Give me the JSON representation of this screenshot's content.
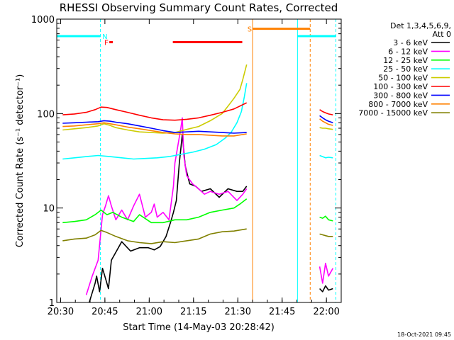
{
  "chart_data": {
    "type": "line",
    "title": "RHESSI Observing Summary Count Rates, Corrected",
    "xlabel": "Start Time (14-May-03 20:28:42)",
    "ylabel": "Corrected Count Rate (s⁻¹ detector⁻¹)",
    "x_unit": "minutes after 20:28:42 (UT, 14-May-03)",
    "xlim": [
      0,
      96.3
    ],
    "ylim": [
      1,
      1000
    ],
    "yscale": "log",
    "xticks": [
      {
        "x": 1.3,
        "label": "20:30"
      },
      {
        "x": 16.3,
        "label": "20:45"
      },
      {
        "x": 31.3,
        "label": "21:00"
      },
      {
        "x": 46.3,
        "label": "21:15"
      },
      {
        "x": 61.3,
        "label": "21:30"
      },
      {
        "x": 76.3,
        "label": "21:45"
      },
      {
        "x": 91.3,
        "label": "22:00"
      }
    ],
    "yticks": [
      {
        "y": 1,
        "label": "1"
      },
      {
        "y": 10,
        "label": "10"
      },
      {
        "y": 100,
        "label": "100"
      },
      {
        "y": 1000,
        "label": "1000"
      }
    ],
    "grid": false,
    "legend_header": [
      "Det 1,3,4,5,6,9,",
      "Att 0"
    ],
    "legend_position": "top-right outside",
    "footer_stamp": "18-Oct-2021 09:45",
    "series": [
      {
        "name": "3 - 6 keV",
        "color": "#000000",
        "x": [
          11,
          13,
          13.5,
          14.5,
          15.5,
          16.5,
          17.5,
          18.5,
          20,
          22,
          25,
          28,
          31,
          33,
          35,
          37,
          38.5,
          39.5,
          40.5,
          41.5,
          42.5,
          43.5,
          45,
          47,
          49,
          52,
          55,
          58,
          61,
          63,
          64.3
        ],
        "y": [
          1,
          1.6,
          1.9,
          1.3,
          2.3,
          1.8,
          1.4,
          2.8,
          3.4,
          4.4,
          3.5,
          3.8,
          3.8,
          3.6,
          3.9,
          5,
          7,
          9,
          12,
          30,
          60,
          28,
          18,
          17,
          15,
          16,
          13,
          16,
          15,
          15,
          17
        ]
      },
      {
        "name": "6 - 12 keV",
        "color": "#ff00ff",
        "x": [
          10,
          12,
          14,
          15.5,
          16.5,
          17.5,
          18.5,
          20,
          22,
          24,
          26,
          28,
          30,
          32,
          33,
          34,
          36,
          38,
          39.5,
          40,
          42,
          42.5,
          43,
          44,
          46,
          48,
          50,
          52,
          55,
          58,
          61,
          63,
          64.3
        ],
        "y": [
          1.2,
          1.9,
          2.8,
          8.5,
          10.5,
          13.5,
          10.5,
          7.5,
          9.5,
          7.5,
          10.5,
          14,
          8,
          9,
          11,
          8,
          9,
          7.5,
          17,
          30,
          70,
          90,
          36,
          22,
          18,
          16,
          14,
          15,
          14,
          15,
          12,
          14,
          16
        ]
      },
      {
        "name": "12 - 25 keV",
        "color": "#00ff00",
        "x": [
          2,
          6,
          10,
          13,
          15,
          17,
          19,
          22,
          26,
          28,
          32,
          36,
          40,
          44,
          48,
          52,
          56,
          60,
          62,
          64.3
        ],
        "y": [
          7,
          7.2,
          7.5,
          8.5,
          9.5,
          8.5,
          9,
          8,
          7.2,
          8.5,
          7,
          7,
          7.5,
          7.5,
          8,
          9,
          9.5,
          10,
          11,
          12.5
        ]
      },
      {
        "name": "25 - 50 keV",
        "color": "#00ffff",
        "x": [
          2,
          6,
          10,
          14,
          18,
          22,
          26,
          30,
          34,
          38,
          42,
          46,
          50,
          54,
          57,
          59,
          61,
          62.5,
          63.5,
          64.3
        ],
        "y": [
          33,
          34,
          35,
          36,
          35,
          34,
          33,
          33.5,
          34,
          35,
          37,
          39,
          42,
          47,
          55,
          63,
          80,
          105,
          150,
          210
        ]
      },
      {
        "name": "50 - 100 keV",
        "color": "#cccc00",
        "x": [
          2,
          6,
          10,
          14,
          16,
          18,
          20,
          24,
          28,
          32,
          36,
          40,
          44,
          48,
          52,
          56,
          58,
          60,
          62,
          63,
          64.3
        ],
        "y": [
          67,
          69,
          71,
          74,
          78,
          75,
          71,
          67,
          64,
          63,
          62,
          63,
          68,
          73,
          84,
          100,
          120,
          145,
          180,
          230,
          330
        ]
      },
      {
        "name": "100 - 300 keV",
        "color": "#ff0000",
        "x": [
          2,
          6,
          10,
          13,
          15,
          17,
          20,
          24,
          28,
          32,
          36,
          40,
          44,
          48,
          52,
          56,
          60,
          64.3
        ],
        "y": [
          97,
          99,
          103,
          110,
          117,
          116,
          110,
          103,
          96,
          90,
          86,
          85,
          87,
          90,
          96,
          103,
          112,
          130
        ]
      },
      {
        "name": "300 - 800 keV",
        "color": "#0000ff",
        "x": [
          2,
          6,
          10,
          14,
          16,
          18,
          20,
          24,
          28,
          32,
          36,
          40,
          44,
          48,
          52,
          56,
          60,
          64.3
        ],
        "y": [
          79,
          80,
          81,
          82,
          84,
          83,
          81,
          78,
          74,
          70,
          66,
          63,
          64,
          65,
          64,
          63,
          62,
          63
        ]
      },
      {
        "name": "800 - 7000 keV",
        "color": "#ff8000",
        "x": [
          2,
          6,
          10,
          14,
          16,
          18,
          20,
          24,
          28,
          32,
          36,
          40,
          44,
          48,
          52,
          56,
          60,
          64.3
        ],
        "y": [
          73,
          74,
          76,
          78,
          80,
          78,
          76,
          72,
          69,
          66,
          63,
          61,
          60,
          60,
          59,
          58,
          58,
          61
        ]
      },
      {
        "name": "7000 - 15000 keV",
        "color": "#808000",
        "x": [
          2,
          6,
          10,
          13,
          15,
          17,
          20,
          24,
          28,
          32,
          36,
          40,
          44,
          48,
          52,
          56,
          60,
          64.3
        ],
        "y": [
          4.5,
          4.7,
          4.8,
          5.2,
          5.8,
          5.5,
          5,
          4.5,
          4.3,
          4.2,
          4.4,
          4.3,
          4.5,
          4.7,
          5.3,
          5.6,
          5.7,
          6
        ]
      },
      {
        "name": "3 - 6 keV",
        "color": "#000000",
        "x": [
          89,
          90,
          91,
          92,
          93.5
        ],
        "y": [
          1.4,
          1.3,
          1.5,
          1.35,
          1.4
        ]
      },
      {
        "name": "6 - 12 keV",
        "color": "#ff00ff",
        "x": [
          89,
          90,
          91,
          92,
          93.5
        ],
        "y": [
          2.4,
          1.6,
          2.6,
          1.9,
          2.3
        ]
      },
      {
        "name": "12 - 25 keV",
        "color": "#00ff00",
        "x": [
          89,
          90,
          91,
          92,
          93.5
        ],
        "y": [
          8,
          7.8,
          8.2,
          7.5,
          7.3
        ]
      },
      {
        "name": "25 - 50 keV",
        "color": "#00ffff",
        "x": [
          89,
          90,
          91,
          92,
          93.5
        ],
        "y": [
          36,
          35,
          34,
          34.5,
          34
        ]
      },
      {
        "name": "50 - 100 keV",
        "color": "#cccc00",
        "x": [
          89,
          90,
          91,
          92,
          93.5
        ],
        "y": [
          71,
          70,
          70,
          69,
          68
        ]
      },
      {
        "name": "100 - 300 keV",
        "color": "#ff0000",
        "x": [
          89,
          90,
          91,
          92,
          93.5
        ],
        "y": [
          110,
          105,
          102,
          99,
          97
        ]
      },
      {
        "name": "300 - 800 keV",
        "color": "#0000ff",
        "x": [
          89,
          90,
          91,
          92,
          93.5
        ],
        "y": [
          95,
          90,
          86,
          83,
          80
        ]
      },
      {
        "name": "800 - 7000 keV",
        "color": "#ff8000",
        "x": [
          89,
          90,
          91,
          92,
          93.5
        ],
        "y": [
          88,
          83,
          80,
          77,
          75
        ]
      },
      {
        "name": "7000 - 15000 keV",
        "color": "#808000",
        "x": [
          89,
          90,
          91,
          92,
          93.5
        ],
        "y": [
          5.3,
          5.2,
          5.1,
          5,
          5
        ]
      }
    ],
    "bar_annotations": [
      {
        "label": "N",
        "color": "#00ffff",
        "x0": 0,
        "x1": 14.8,
        "label_x": 16.3,
        "value": 660
      },
      {
        "label": "",
        "color": "#00ffff",
        "x0": 81.5,
        "x1": 94.5,
        "label_x": 0,
        "value": 660
      },
      {
        "label": "F",
        "color": "#ff0000",
        "x0": 17.8,
        "x1": 19,
        "label_x": 16.8,
        "value": 570
      },
      {
        "label": "",
        "color": "#ff0000",
        "x0": 39.3,
        "x1": 62.8,
        "label_x": 0,
        "value": 570
      },
      {
        "label": "S",
        "color": "#ff8000",
        "x0": 66.3,
        "x1": 85.8,
        "label_x": 65.3,
        "value": 790
      }
    ],
    "vertical_markers": [
      {
        "color": "#00ffff",
        "x": 14.8,
        "style": "dashed"
      },
      {
        "color": "#00ffff",
        "x": 81.5,
        "style": "solid"
      },
      {
        "color": "#00ffff",
        "x": 94.5,
        "style": "dashed"
      },
      {
        "color": "#ff8000",
        "x": 66.3,
        "style": "solid"
      },
      {
        "color": "#ff8000",
        "x": 85.8,
        "style": "dashed"
      }
    ]
  }
}
